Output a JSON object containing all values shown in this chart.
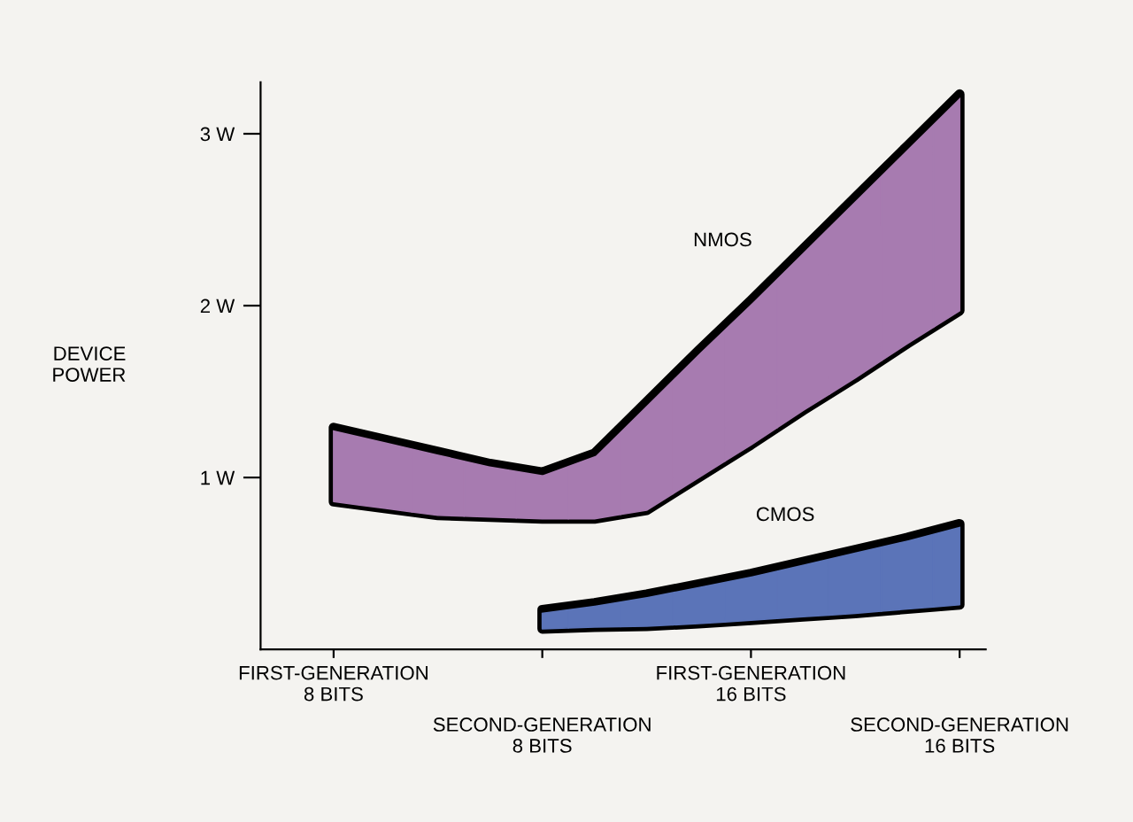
{
  "chart_data": {
    "type": "line",
    "ylabel": "DEVICE\nPOWER",
    "categories": [
      "FIRST-GENERATION\n8 BITS",
      null,
      null,
      null,
      "SECOND-GENERATION\n8 BITS",
      null,
      null,
      null,
      "FIRST-GENERATION\n16 BITS",
      null,
      null,
      null,
      "SECOND-GENERATION\n16 BITS"
    ],
    "ylim": [
      0,
      3.3
    ],
    "yticks": [
      {
        "value": 1,
        "label": "1 W"
      },
      {
        "value": 2,
        "label": "2 W"
      },
      {
        "value": 3,
        "label": "3 W"
      }
    ],
    "grid": false,
    "legend": false,
    "series": [
      {
        "name": "NMOS",
        "color": "#000000",
        "colors": [
          "#a77bb0",
          "#a77bb0",
          "#a77bb0",
          "#a77bb0",
          "#a77bb0",
          "#a77bb0",
          "#a77bb0",
          "#a77bb0",
          "#a77bb0",
          "#a77bb0",
          "#a77bb0",
          "#a77bb0",
          "#a77bb0"
        ],
        "values": [
          1.29,
          1.22,
          1.15,
          1.08,
          1.03,
          1.14,
          1.44,
          1.74,
          2.03,
          2.33,
          2.63,
          2.93,
          3.23
        ],
        "upper": [
          1.29,
          1.22,
          1.15,
          1.08,
          1.03,
          1.14,
          1.44,
          1.74,
          2.03,
          2.33,
          2.63,
          2.93,
          3.23
        ],
        "lower": [
          0.86,
          0.82,
          0.78,
          0.77,
          0.76,
          0.76,
          0.81,
          1.0,
          1.19,
          1.39,
          1.58,
          1.78,
          1.97
        ]
      },
      {
        "name": "CMOS",
        "color": "#000000",
        "colors": [
          null,
          null,
          null,
          null,
          "#5b74b8",
          "#5b74b8",
          "#5b74b8",
          "#5b74b8",
          "#5b74b8",
          "#5b74b8",
          "#5b74b8",
          "#5b74b8",
          "#5b74b8"
        ],
        "values": [
          null,
          null,
          null,
          null,
          0.23,
          0.27,
          0.32,
          0.38,
          0.44,
          0.51,
          0.58,
          0.65,
          0.73
        ],
        "upper": [
          null,
          null,
          null,
          null,
          0.23,
          0.27,
          0.32,
          0.38,
          0.44,
          0.51,
          0.58,
          0.65,
          0.73
        ],
        "lower": [
          null,
          null,
          null,
          null,
          0.12,
          0.13,
          0.135,
          0.15,
          0.17,
          0.19,
          0.21,
          0.235,
          0.26
        ]
      }
    ]
  }
}
